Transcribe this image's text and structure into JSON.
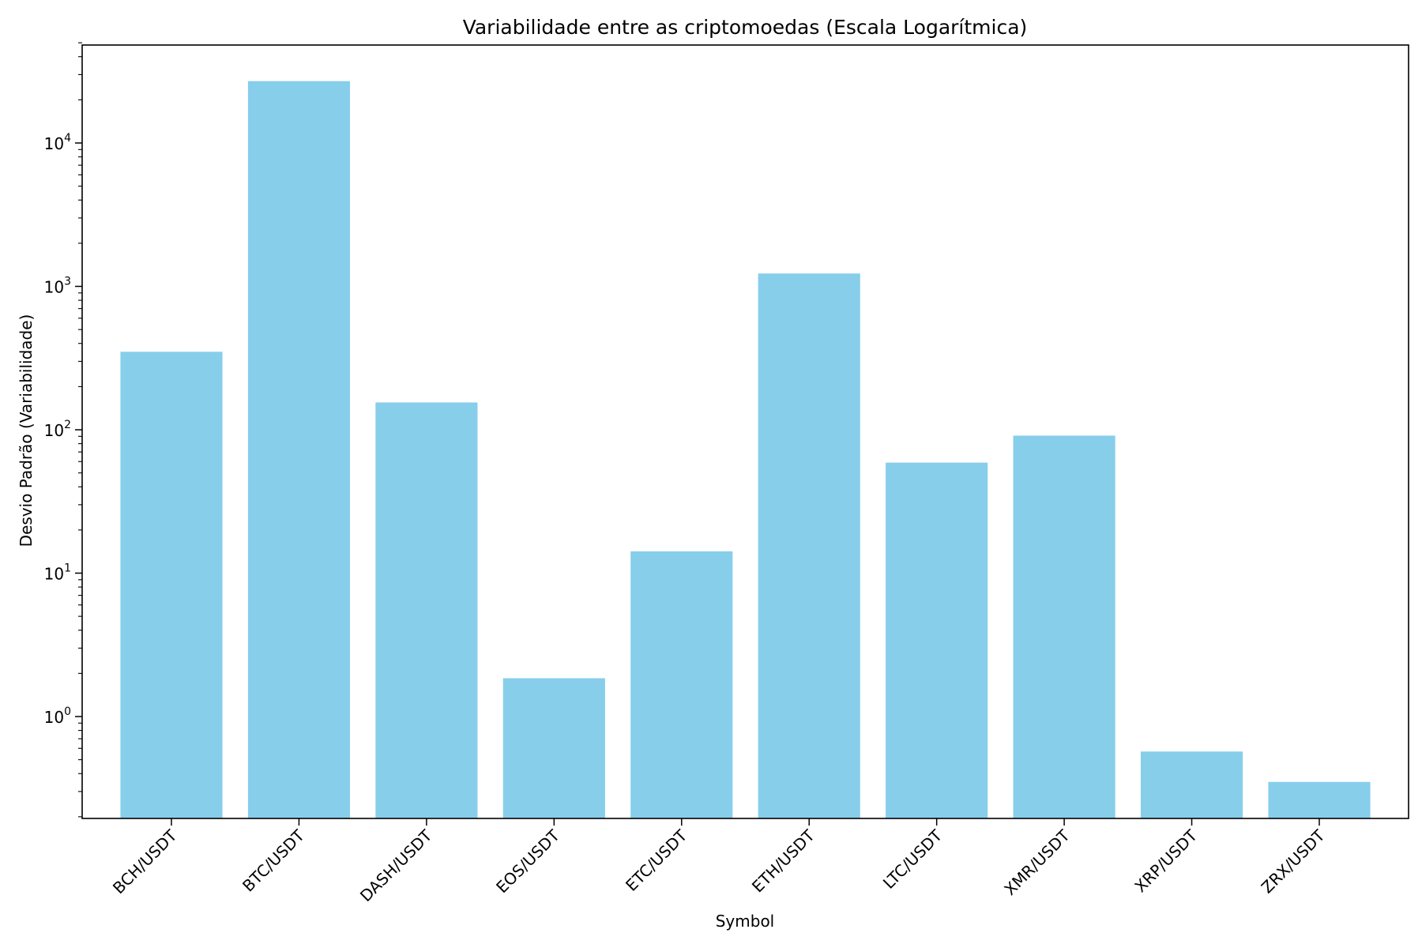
{
  "chart_data": {
    "type": "bar",
    "title": "Variabilidade entre as criptomoedas (Escala Logarítmica)",
    "xlabel": "Symbol",
    "ylabel": "Desvio Padrão (Variabilidade)",
    "yscale": "log",
    "ylim": [
      0.2,
      50000
    ],
    "yticks": [
      {
        "value": 1,
        "base": "10",
        "exp": "0"
      },
      {
        "value": 10,
        "base": "10",
        "exp": "1"
      },
      {
        "value": 100,
        "base": "10",
        "exp": "2"
      },
      {
        "value": 1000,
        "base": "10",
        "exp": "3"
      },
      {
        "value": 10000,
        "base": "10",
        "exp": "4"
      }
    ],
    "categories": [
      "BCH/USDT",
      "BTC/USDT",
      "DASH/USDT",
      "EOS/USDT",
      "ETC/USDT",
      "ETH/USDT",
      "LTC/USDT",
      "XMR/USDT",
      "XRP/USDT",
      "ZRX/USDT"
    ],
    "values": [
      350,
      27000,
      155,
      1.85,
      14.2,
      1230,
      59,
      91,
      0.57,
      0.35
    ],
    "bar_color": "#87CEEB",
    "grid": false,
    "legend": "none"
  }
}
